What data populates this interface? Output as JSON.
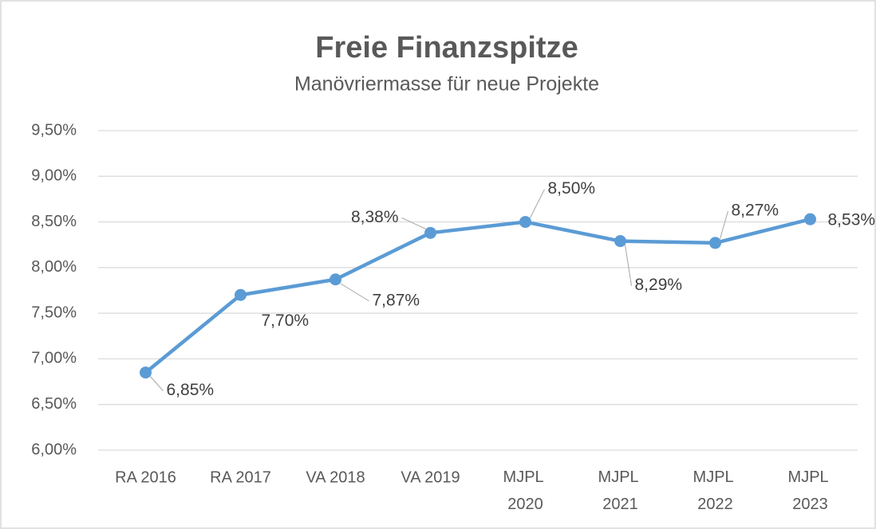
{
  "chart_data": {
    "type": "line",
    "title": "Freie Finanzspitze",
    "subtitle": "Manövriermasse für neue Projekte",
    "categories": [
      "RA 2016",
      "RA 2017",
      "VA 2018",
      "VA 2019",
      "MJPL 2020",
      "MJPL 2021",
      "MJPL 2022",
      "MJPL 2023"
    ],
    "series": [
      {
        "name": "Freie Finanzspitze",
        "color": "#5b9bd5",
        "values": [
          6.85,
          7.7,
          7.87,
          8.38,
          8.5,
          8.29,
          8.27,
          8.53
        ],
        "value_labels": [
          "6,85%",
          "7,70%",
          "7,87%",
          "8,38%",
          "8,50%",
          "8,29%",
          "8,27%",
          "8,53%"
        ]
      }
    ],
    "ylim": [
      6.0,
      9.5
    ],
    "yticks": [
      {
        "value": 6.0,
        "label": "6,00%"
      },
      {
        "value": 6.5,
        "label": "6,50%"
      },
      {
        "value": 7.0,
        "label": "7,00%"
      },
      {
        "value": 7.5,
        "label": "7,50%"
      },
      {
        "value": 8.0,
        "label": "8,00%"
      },
      {
        "value": 8.5,
        "label": "8,50%"
      },
      {
        "value": 9.0,
        "label": "9,00%"
      },
      {
        "value": 9.5,
        "label": "9,50%"
      }
    ],
    "grid": true
  }
}
